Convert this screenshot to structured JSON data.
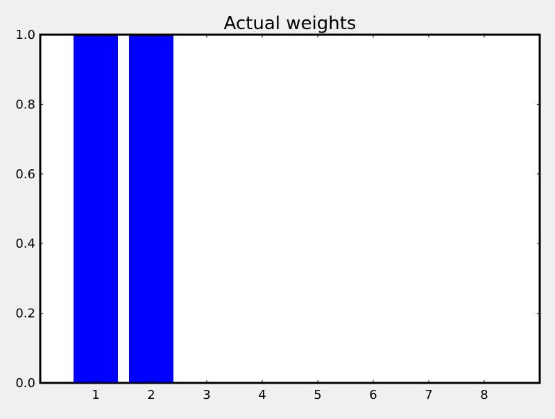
{
  "figure": {
    "background_color": "#f0f0f0"
  },
  "chart_data": {
    "type": "bar",
    "title": "Actual weights",
    "xlabel": "",
    "ylabel": "",
    "categories": [
      "1",
      "2",
      "3",
      "4",
      "5",
      "6",
      "7",
      "8"
    ],
    "x": [
      1,
      2,
      3,
      4,
      5,
      6,
      7,
      8
    ],
    "values": [
      1.0,
      1.0,
      0.0,
      0.0,
      0.0,
      0.0,
      0.0,
      0.0
    ],
    "bar_width": 0.8,
    "xlim": [
      0,
      9
    ],
    "ylim": [
      0,
      1.0
    ],
    "xticks": [
      1,
      2,
      3,
      4,
      5,
      6,
      7,
      8
    ],
    "xtick_labels": [
      "1",
      "2",
      "3",
      "4",
      "5",
      "6",
      "7",
      "8"
    ],
    "yticks": [
      0.0,
      0.2,
      0.4,
      0.6,
      0.8,
      1.0
    ],
    "ytick_labels": [
      "0.0",
      "0.2",
      "0.4",
      "0.6",
      "0.8",
      "1.0"
    ],
    "bar_color": "#0000ff",
    "axes_face_color": "#ffffff",
    "grid": false,
    "legend": "none"
  }
}
